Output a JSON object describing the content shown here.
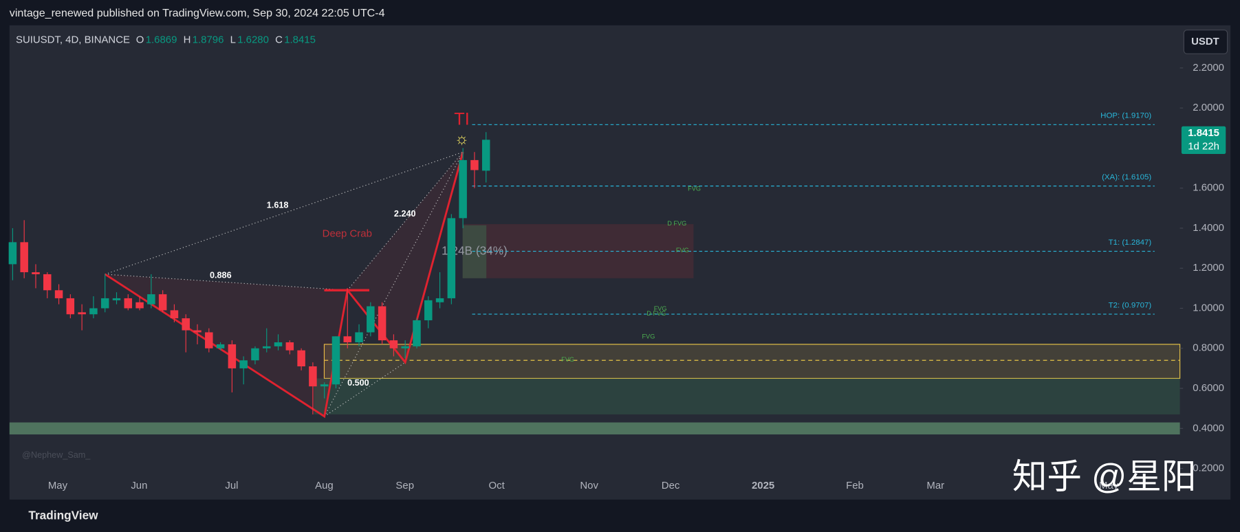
{
  "header": "vintage_renewed published on TradingView.com, Sep 30, 2024 22:05 UTC-4",
  "footer_brand": "TradingView",
  "watermark": "知乎 @星阳",
  "author_tag": "@Nephew_Sam_",
  "currency_button": "USDT",
  "chart_data": {
    "type": "candlestick",
    "title": "SUIUSDT, 4D, BINANCE",
    "ohlc_keys": [
      "O",
      "H",
      "L",
      "C"
    ],
    "ohlc_labels": [
      "1.6869",
      "1.8796",
      "1.6280",
      "1.8415"
    ],
    "open": [
      1.22,
      1.33,
      1.18,
      1.17,
      1.09,
      1.05,
      0.98,
      0.97,
      1.0,
      1.04,
      1.05,
      1.03,
      1.02,
      1.07,
      0.99,
      0.95,
      0.89,
      0.88,
      0.8,
      0.82,
      0.7,
      0.74,
      0.8,
      0.81,
      0.83,
      0.79,
      0.71,
      0.61,
      0.62,
      0.86,
      0.83,
      0.88,
      1.01,
      0.84,
      0.8,
      0.81,
      0.94,
      1.03,
      1.05,
      1.45,
      1.74,
      1.6869
    ],
    "high": [
      1.4,
      1.44,
      1.22,
      1.18,
      1.12,
      1.07,
      1.02,
      1.06,
      1.17,
      1.08,
      1.07,
      1.06,
      1.17,
      1.09,
      1.02,
      0.97,
      0.92,
      0.9,
      0.83,
      0.84,
      0.76,
      0.81,
      0.9,
      0.87,
      0.84,
      0.8,
      0.73,
      0.63,
      0.86,
      1.1,
      0.92,
      1.03,
      1.03,
      0.87,
      0.84,
      0.95,
      1.06,
      1.18,
      1.47,
      1.8,
      1.78,
      1.8796
    ],
    "low": [
      1.14,
      1.15,
      1.1,
      1.05,
      1.02,
      0.95,
      0.89,
      0.95,
      0.98,
      1.02,
      0.99,
      0.99,
      1.0,
      0.98,
      0.93,
      0.78,
      0.82,
      0.78,
      0.79,
      0.58,
      0.62,
      0.72,
      0.78,
      0.79,
      0.77,
      0.69,
      0.47,
      0.55,
      0.6,
      0.8,
      0.81,
      0.86,
      0.82,
      0.76,
      0.75,
      0.8,
      0.9,
      1.0,
      1.02,
      1.4,
      1.6,
      1.628
    ],
    "close": [
      1.33,
      1.18,
      1.17,
      1.09,
      1.05,
      0.97,
      0.97,
      1.0,
      1.05,
      1.05,
      1.0,
      1.0,
      1.07,
      0.99,
      0.95,
      0.89,
      0.88,
      0.8,
      0.82,
      0.7,
      0.74,
      0.8,
      0.81,
      0.83,
      0.79,
      0.71,
      0.61,
      0.62,
      0.86,
      0.83,
      0.88,
      1.01,
      0.84,
      0.8,
      0.81,
      0.94,
      1.04,
      1.05,
      1.45,
      1.74,
      1.69,
      1.8415
    ],
    "up_color": "#089981",
    "down_color": "#f23645",
    "ylim": [
      0.171,
      2.413
    ],
    "yticks": [
      {
        "value": 2.2,
        "label": "2.2000"
      },
      {
        "value": 2.0,
        "label": "2.0000"
      },
      {
        "value": 1.6,
        "label": "1.6000"
      },
      {
        "value": 1.4,
        "label": "1.4000"
      },
      {
        "value": 1.2,
        "label": "1.2000"
      },
      {
        "value": 1.0,
        "label": "1.0000"
      },
      {
        "value": 0.8,
        "label": "0.8000"
      },
      {
        "value": 0.6,
        "label": "0.6000"
      },
      {
        "value": 0.4,
        "label": "0.4000"
      },
      {
        "value": 0.2,
        "label": "0.2000"
      }
    ],
    "month_labels": [
      "May",
      "Jun",
      "Jul",
      "Aug",
      "Sep",
      "Oct",
      "Nov",
      "Dec",
      "2025",
      "Feb",
      "Mar",
      "May"
    ],
    "last_price": {
      "value": 1.8415,
      "label": "1.8415",
      "countdown": "1d 22h"
    },
    "levels": [
      {
        "label": "HOP: (1.9170)",
        "value": 1.917
      },
      {
        "label": "(XA): (1.6105)",
        "value": 1.6105
      },
      {
        "label": "T1: (1.2847)",
        "value": 1.2847
      },
      {
        "label": "T2: (0.9707)",
        "value": 0.9707
      }
    ],
    "zones": [
      {
        "top": 0.82,
        "bottom": 0.65,
        "color": "#e8c547"
      },
      {
        "top": 0.65,
        "bottom": 0.47,
        "color": "#3d7a55"
      },
      {
        "top": 0.43,
        "bottom": 0.37,
        "color": "#6aa57a"
      },
      {
        "top": 1.42,
        "bottom": 1.15,
        "color": "#7a2e35"
      }
    ],
    "zone_midline": 0.74,
    "pattern": {
      "name": "Deep Crab",
      "points": [
        1.17,
        0.46,
        1.09,
        0.73,
        1.78
      ],
      "ratios": [
        "1.618",
        "0.886",
        "2.240",
        "0.500"
      ],
      "marker": "TI"
    },
    "volume_label": "1.24B (34%)",
    "fvg_labels": [
      {
        "text": "FVG",
        "value": 1.596
      },
      {
        "text": "D FVG",
        "value": 1.422
      },
      {
        "text": "FVG",
        "value": 1.288
      },
      {
        "text": "FVG",
        "value": 0.996
      },
      {
        "text": "D FVG",
        "value": 0.972
      },
      {
        "text": "FVG",
        "value": 0.858
      },
      {
        "text": "FVG",
        "value": 0.743
      }
    ]
  }
}
